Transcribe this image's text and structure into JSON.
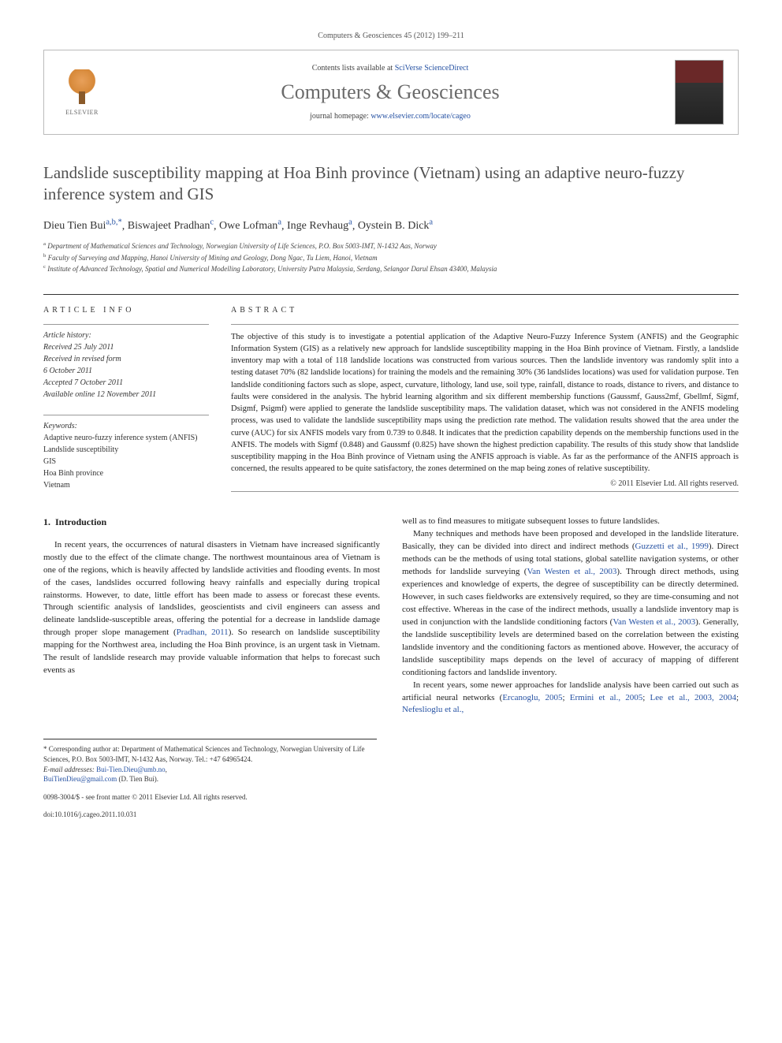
{
  "journal_ref": "Computers & Geosciences 45 (2012) 199–211",
  "header": {
    "contents_prefix": "Contents lists available at ",
    "contents_link": "SciVerse ScienceDirect",
    "journal_name": "Computers & Geosciences",
    "homepage_prefix": "journal homepage: ",
    "homepage_link": "www.elsevier.com/locate/cageo",
    "publisher": "ELSEVIER"
  },
  "title": "Landslide susceptibility mapping at Hoa Binh province (Vietnam) using an adaptive neuro-fuzzy inference system and GIS",
  "authors_html": "Dieu Tien Bui",
  "authors": [
    {
      "name": "Dieu Tien Bui",
      "sup": "a,b,*"
    },
    {
      "name": "Biswajeet Pradhan",
      "sup": "c"
    },
    {
      "name": "Owe Lofman",
      "sup": "a"
    },
    {
      "name": "Inge Revhaug",
      "sup": "a"
    },
    {
      "name": "Oystein B. Dick",
      "sup": "a"
    }
  ],
  "affiliations": [
    {
      "sup": "a",
      "text": "Department of Mathematical Sciences and Technology, Norwegian University of Life Sciences, P.O. Box 5003-IMT, N-1432 Aas, Norway"
    },
    {
      "sup": "b",
      "text": "Faculty of Surveying and Mapping, Hanoi University of Mining and Geology, Dong Ngac, Tu Liem, Hanoi, Vietnam"
    },
    {
      "sup": "c",
      "text": "Institute of Advanced Technology, Spatial and Numerical Modelling Laboratory, University Putra Malaysia, Serdang, Selangor Darul Ehsan 43400, Malaysia"
    }
  ],
  "article_info": {
    "label": "ARTICLE INFO",
    "history_label": "Article history:",
    "history": [
      "Received 25 July 2011",
      "Received in revised form",
      "6 October 2011",
      "Accepted 7 October 2011",
      "Available online 12 November 2011"
    ],
    "keywords_label": "Keywords:",
    "keywords": [
      "Adaptive neuro-fuzzy inference system (ANFIS)",
      "Landslide susceptibility",
      "GIS",
      "Hoa Binh province",
      "Vietnam"
    ]
  },
  "abstract": {
    "label": "ABSTRACT",
    "text": "The objective of this study is to investigate a potential application of the Adaptive Neuro-Fuzzy Inference System (ANFIS) and the Geographic Information System (GIS) as a relatively new approach for landslide susceptibility mapping in the Hoa Binh province of Vietnam. Firstly, a landslide inventory map with a total of 118 landslide locations was constructed from various sources. Then the landslide inventory was randomly split into a testing dataset 70% (82 landslide locations) for training the models and the remaining 30% (36 landslides locations) was used for validation purpose. Ten landslide conditioning factors such as slope, aspect, curvature, lithology, land use, soil type, rainfall, distance to roads, distance to rivers, and distance to faults were considered in the analysis. The hybrid learning algorithm and six different membership functions (Gaussmf, Gauss2mf, Gbellmf, Sigmf, Dsigmf, Psigmf) were applied to generate the landslide susceptibility maps. The validation dataset, which was not considered in the ANFIS modeling process, was used to validate the landslide susceptibility maps using the prediction rate method. The validation results showed that the area under the curve (AUC) for six ANFIS models vary from 0.739 to 0.848. It indicates that the prediction capability depends on the membership functions used in the ANFIS. The models with Sigmf (0.848) and Gaussmf (0.825) have shown the highest prediction capability. The results of this study show that landslide susceptibility mapping in the Hoa Binh province of Vietnam using the ANFIS approach is viable. As far as the performance of the ANFIS approach is concerned, the results appeared to be quite satisfactory, the zones determined on the map being zones of relative susceptibility.",
    "copyright": "© 2011 Elsevier Ltd. All rights reserved."
  },
  "body": {
    "section_number": "1.",
    "section_title": "Introduction",
    "left_paras": [
      "In recent years, the occurrences of natural disasters in Vietnam have increased significantly mostly due to the effect of the climate change. The northwest mountainous area of Vietnam is one of the regions, which is heavily affected by landslide activities and flooding events. In most of the cases, landslides occurred following heavy rainfalls and especially during tropical rainstorms. However, to date, little effort has been made to assess or forecast these events. Through scientific analysis of landslides, geoscientists and civil engineers can assess and delineate landslide-susceptible areas, offering the potential for a decrease in landslide damage through proper slope management (Pradhan, 2011). So research on landslide susceptibility mapping for the Northwest area, including the Hoa Binh province, is an urgent task in Vietnam. The result of landslide research may provide valuable information that helps to forecast such events as"
    ],
    "left_links": {
      "pradhan": "Pradhan, 2011"
    },
    "right_paras": [
      "well as to find measures to mitigate subsequent losses to future landslides.",
      "Many techniques and methods have been proposed and developed in the landslide literature. Basically, they can be divided into direct and indirect methods (Guzzetti et al., 1999). Direct methods can be the methods of using total stations, global satellite navigation systems, or other methods for landslide surveying (Van Westen et al., 2003). Through direct methods, using experiences and knowledge of experts, the degree of susceptibility can be directly determined. However, in such cases fieldworks are extensively required, so they are time-consuming and not cost effective. Whereas in the case of the indirect methods, usually a landslide inventory map is used in conjunction with the landslide conditioning factors (Van Westen et al., 2003). Generally, the landslide susceptibility levels are determined based on the correlation between the existing landslide inventory and the conditioning factors as mentioned above. However, the accuracy of landslide susceptibility maps depends on the level of accuracy of mapping of different conditioning factors and landslide inventory.",
      "In recent years, some newer approaches for landslide analysis have been carried out such as artificial neural networks (Ercanoglu, 2005; Ermini et al., 2005; Lee et al., 2003, 2004; Nefeslioglu et al.,"
    ],
    "right_links": {
      "guzzetti": "Guzzetti et al., 1999",
      "vanwesten1": "Van Westen et al., 2003",
      "vanwesten2": "Van Westen et al., 2003",
      "ercanoglu": "Ercanoglu, 2005",
      "ermini": "Ermini et al., 2005",
      "lee": "Lee et al., 2003, 2004",
      "nefes": "Nefeslioglu et al.,"
    }
  },
  "footnotes": {
    "corresponding": "* Corresponding author at: Department of Mathematical Sciences and Technology, Norwegian University of Life Sciences, P.O. Box 5003-IMT, N-1432 Aas, Norway. Tel.: +47 64965424.",
    "email_label": "E-mail addresses:",
    "email1": "Bui-Tien.Dieu@umb.no",
    "email2": "BuiTienDieu@gmail.com",
    "email_suffix": "(D. Tien Bui).",
    "issn_line": "0098-3004/$ - see front matter © 2011 Elsevier Ltd. All rights reserved.",
    "doi_line": "doi:10.1016/j.cageo.2011.10.031"
  }
}
